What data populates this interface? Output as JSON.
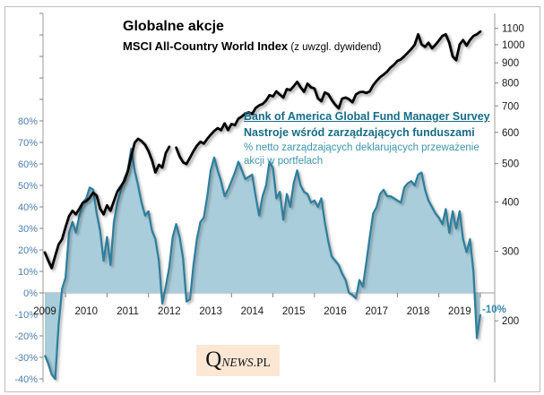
{
  "header": {
    "title": "Globalne akcje",
    "subtitle": "MSCI All-Country World Index",
    "subtitle_note": " (z uwzgl. dywidend)"
  },
  "annotation": {
    "title": "Bank of America Global Fund Manager Survey",
    "subtitle": "Nastroje wśród zarządzających funduszami",
    "desc_line1": "% netto zarządzających deklarujących przeważenie",
    "desc_line2": "akcji w portfelach"
  },
  "callout_label": "-10%",
  "logo": {
    "q": "Q",
    "news": "NEWS",
    "pl": ".PL"
  },
  "colors": {
    "msci_line": "#000000",
    "fms_line": "#2f7f9d",
    "fms_fill": "#a9cddb",
    "left_axis_labels": "#4d7eae",
    "annotation_title": "#176b85",
    "annotation_desc": "#3e93ae",
    "callout": "#3387ad",
    "axis_lines": "#9b9b9b",
    "logo_bg": "#fce7d5"
  },
  "chart_data": {
    "type": "line+area",
    "title": "Globalne akcje",
    "subtitle": "MSCI All-Country World Index (z uwzgl. dywidend)",
    "x_monthly_start": "2009-01",
    "x_monthly_end": "2019-07",
    "year_labels": [
      "2009",
      "2010",
      "2011",
      "2012",
      "2013",
      "2014",
      "2015",
      "2016",
      "2017",
      "2018",
      "2019"
    ],
    "left_axis": {
      "applies_to": "fms_net_overweight_pct",
      "unit": "%",
      "min": -40,
      "max": 80,
      "tick_step": 10,
      "tick_labels": [
        "80%",
        "70%",
        "60%",
        "50%",
        "40%",
        "30%",
        "20%",
        "10%",
        "0%",
        "-10%",
        "-20%",
        "-30%",
        "-40%"
      ]
    },
    "right_axis": {
      "applies_to": "msci_acwi_index",
      "scale": "log",
      "tick_labels": [
        "1100",
        "1000",
        "900",
        "800",
        "700",
        "600",
        "500",
        "400",
        "300",
        "200"
      ]
    },
    "grid": "off",
    "legend": "none",
    "series": [
      {
        "name": "MSCI All-Country World Index (z uwzgl. dywidend)",
        "type": "line",
        "axis": "right",
        "color": "#000000",
        "monthly_values": [
          298,
          284,
          272,
          292,
          312,
          322,
          345,
          368,
          380,
          372,
          385,
          398,
          402,
          410,
          422,
          415,
          385,
          372,
          392,
          380,
          402,
          425,
          438,
          452,
          478,
          522,
          565,
          578,
          570,
          558,
          538,
          510,
          475,
          497,
          489,
          532,
          552,
          null,
          549,
          522,
          504,
          499,
          518,
          538,
          555,
          568,
          562,
          578,
          592,
          605,
          615,
          608,
          632,
          608,
          630,
          626,
          650,
          658,
          670,
          674,
          668,
          692,
          702,
          708,
          722,
          745,
          740,
          762,
          748,
          735,
          772,
          768,
          785,
          806,
          780,
          760,
          797,
          780,
          775,
          732,
          719,
          757,
          750,
          725,
          705,
          690,
          730,
          735,
          728,
          715,
          748,
          758,
          760,
          755,
          762,
          790,
          810,
          828,
          840,
          855,
          875,
          890,
          910,
          918,
          935,
          955,
          975,
          1000,
          1063,
          1002,
          988,
          1012,
          979,
          1000,
          1025,
          1053,
          1063,
          1012,
          934,
          914,
          1002,
          1028,
          995,
          1028,
          1053,
          1063,
          1080
        ]
      },
      {
        "name": "% netto zarządzających deklarujących przeważenie akcji w portfelach (BofA FMS)",
        "type": "area",
        "axis": "left",
        "line_color": "#2f7f9d",
        "fill_color": "#a9cddb",
        "monthly_values": [
          -29,
          -33,
          -38,
          -40,
          -15,
          2,
          7,
          28,
          33,
          28,
          36,
          42,
          44,
          49,
          48,
          37,
          29,
          15,
          26,
          13,
          33,
          42,
          48,
          53,
          57,
          67,
          57,
          50,
          42,
          36,
          38,
          29,
          25,
          15,
          -5,
          3,
          12,
          26,
          32,
          26,
          16,
          -4,
          -3,
          13,
          25,
          33,
          35,
          45,
          57,
          63,
          57,
          52,
          45,
          48,
          52,
          56,
          61,
          57,
          53,
          54,
          55,
          45,
          36,
          45,
          50,
          61,
          58,
          44,
          47,
          34,
          46,
          40,
          51,
          57,
          50,
          47,
          46,
          42,
          43,
          40,
          44,
          33,
          24,
          17,
          15,
          13,
          9,
          6,
          0,
          -1,
          -2.5,
          6,
          3,
          14,
          26,
          37,
          40,
          46,
          48,
          45,
          45,
          44,
          43,
          42,
          49,
          51,
          52,
          50,
          55,
          56,
          48,
          43,
          40,
          37,
          35,
          32,
          39,
          28,
          38,
          30,
          38,
          25,
          19,
          25,
          10,
          -21,
          -10
        ]
      }
    ],
    "last_value_callout": {
      "series": "fms",
      "value": -10,
      "label": "-10%"
    }
  }
}
